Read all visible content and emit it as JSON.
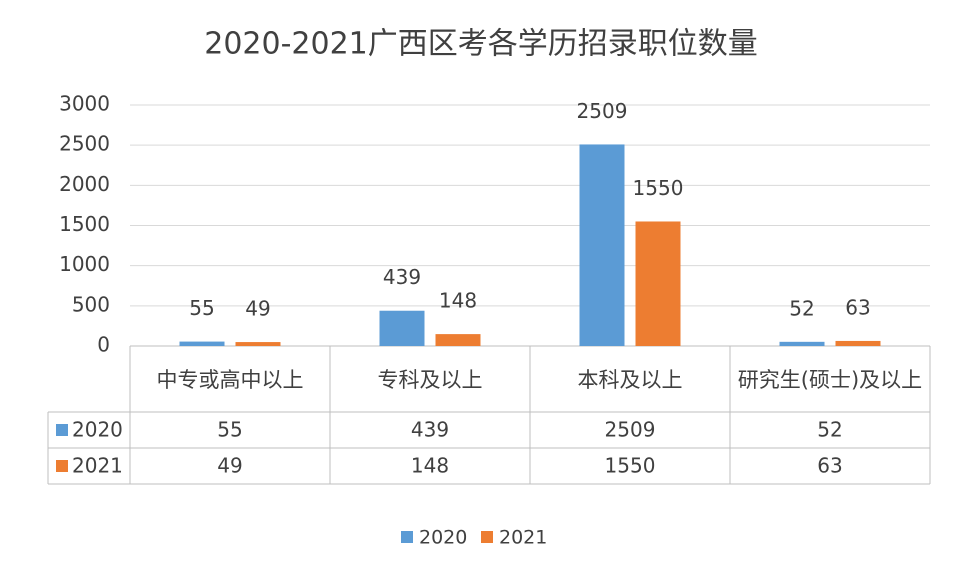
{
  "chart_data": {
    "type": "bar",
    "title": "2020-2021广西区考各学历招录职位数量",
    "categories": [
      "中专或高中以上",
      "专科及以上",
      "本科及以上",
      "研究生(硕士)及以上"
    ],
    "series": [
      {
        "name": "2020",
        "color": "#5b9bd5",
        "values": [
          55,
          439,
          2509,
          52
        ]
      },
      {
        "name": "2021",
        "color": "#ed7d31",
        "values": [
          49,
          148,
          1550,
          63
        ]
      }
    ],
    "ylim": [
      0,
      3000
    ],
    "yticks": [
      0,
      500,
      1000,
      1500,
      2000,
      2500,
      3000
    ],
    "grid": true,
    "data_table": true,
    "legend": "bottom"
  }
}
